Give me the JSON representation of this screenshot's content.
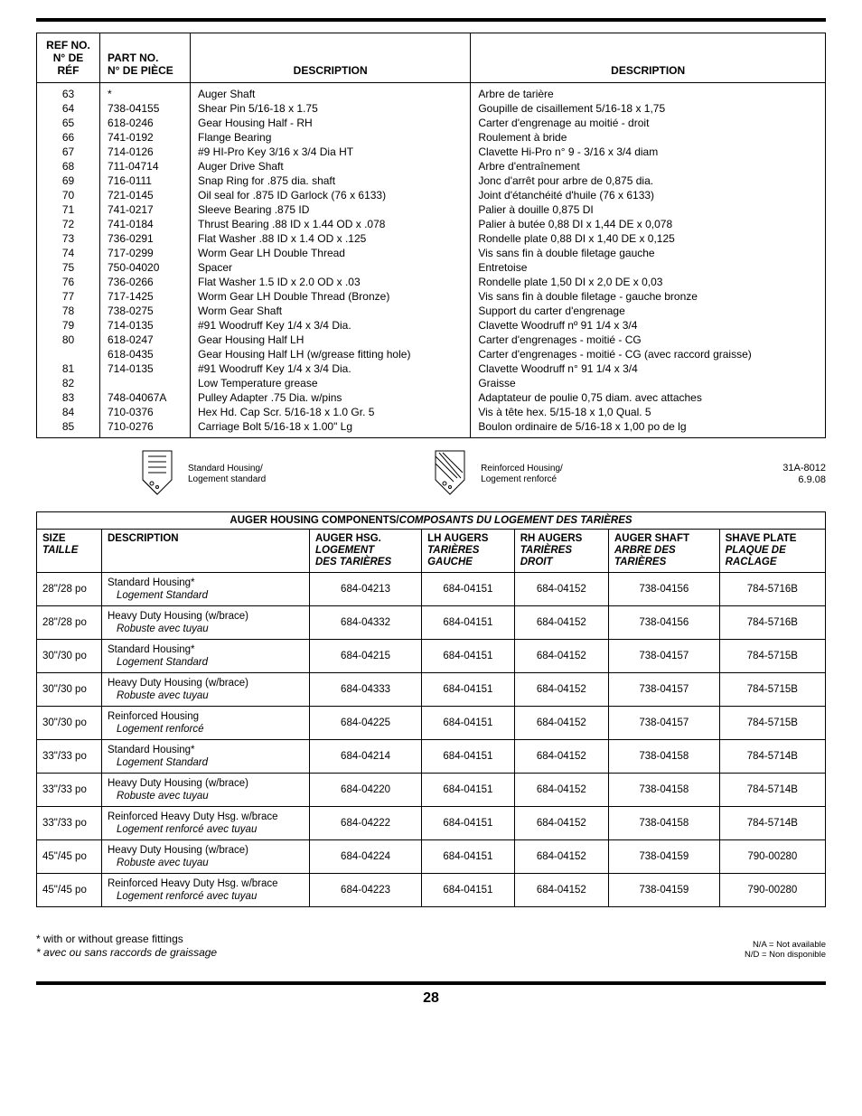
{
  "parts_table": {
    "headers": {
      "ref_en": "REF NO.",
      "ref_fr": "N° DE RÉF",
      "part_en": "PART NO.",
      "part_fr": "N° DE PIÈCE",
      "desc_en": "DESCRIPTION",
      "desc_fr": "DESCRIPTION"
    },
    "rows": [
      {
        "ref": "63",
        "part": "*",
        "desc_en": "Auger Shaft",
        "desc_fr": "Arbre de tarière"
      },
      {
        "ref": "64",
        "part": "738-04155",
        "desc_en": "Shear Pin 5/16-18 x 1.75",
        "desc_fr": "Goupille de cisaillement 5/16-18 x 1,75"
      },
      {
        "ref": "65",
        "part": "618-0246",
        "desc_en": "Gear Housing Half - RH",
        "desc_fr": "Carter d'engrenage au moitié - droit"
      },
      {
        "ref": "66",
        "part": "741-0192",
        "desc_en": "Flange Bearing",
        "desc_fr": "Roulement à bride"
      },
      {
        "ref": "67",
        "part": "714-0126",
        "desc_en": "#9 HI-Pro Key 3/16 x 3/4 Dia HT",
        "desc_fr": "Clavette Hi-Pro n° 9 - 3/16 x 3/4 diam"
      },
      {
        "ref": "68",
        "part": "711-04714",
        "desc_en": "Auger Drive Shaft",
        "desc_fr": "Arbre d'entraînement"
      },
      {
        "ref": "69",
        "part": "716-0111",
        "desc_en": "Snap Ring for .875 dia. shaft",
        "desc_fr": "Jonc d'arrêt pour arbre de 0,875 dia."
      },
      {
        "ref": "70",
        "part": "721-0145",
        "desc_en": "Oil seal for .875 ID Garlock (76 x 6133)",
        "desc_fr": "Joint d'étanchéité d'huile (76 x 6133)"
      },
      {
        "ref": "71",
        "part": "741-0217",
        "desc_en": "Sleeve Bearing .875 ID",
        "desc_fr": "Palier à douille 0,875 DI"
      },
      {
        "ref": "72",
        "part": "741-0184",
        "desc_en": "Thrust Bearing .88 ID x 1.44 OD x .078",
        "desc_fr": "Palier à butée 0,88 DI x 1,44 DE x 0,078"
      },
      {
        "ref": "73",
        "part": "736-0291",
        "desc_en": "Flat Washer .88 ID x 1.4 OD x .125",
        "desc_fr": "Rondelle plate 0,88 DI x 1,40 DE x 0,125"
      },
      {
        "ref": "74",
        "part": "717-0299",
        "desc_en": "Worm Gear LH Double Thread",
        "desc_fr": "Vis sans fin à double filetage gauche"
      },
      {
        "ref": "75",
        "part": "750-04020",
        "desc_en": "Spacer",
        "desc_fr": "Entretoise"
      },
      {
        "ref": "76",
        "part": "736-0266",
        "desc_en": "Flat Washer 1.5 ID x 2.0 OD x .03",
        "desc_fr": "Rondelle plate 1,50 DI x 2,0 DE x 0,03"
      },
      {
        "ref": "77",
        "part": "717-1425",
        "desc_en": "Worm Gear LH Double Thread (Bronze)",
        "desc_fr": "Vis sans fin à double filetage - gauche bronze"
      },
      {
        "ref": "78",
        "part": "738-0275",
        "desc_en": "Worm Gear Shaft",
        "desc_fr": "Support du carter d'engrenage"
      },
      {
        "ref": "79",
        "part": "714-0135",
        "desc_en": "#91 Woodruff Key 1/4 x 3/4 Dia.",
        "desc_fr": "Clavette Woodruff nº 91 1/4 x 3/4"
      },
      {
        "ref": "80",
        "part": "618-0247",
        "desc_en": "Gear Housing Half LH",
        "desc_fr": "Carter d'engrenages - moitié - CG"
      },
      {
        "ref": "",
        "part": "618-0435",
        "desc_en": "Gear Housing Half LH (w/grease fitting hole)",
        "desc_fr": "Carter d'engrenages - moitié - CG (avec raccord graisse)"
      },
      {
        "ref": "81",
        "part": "714-0135",
        "desc_en": "#91 Woodruff Key 1/4 x 3/4 Dia.",
        "desc_fr": "Clavette Woodruff n° 91 1/4 x 3/4"
      },
      {
        "ref": "82",
        "part": "",
        "desc_en": "Low Temperature grease",
        "desc_fr": "Graisse"
      },
      {
        "ref": "83",
        "part": "748-04067A",
        "desc_en": "Pulley Adapter .75 Dia. w/pins",
        "desc_fr": "Adaptateur de poulie 0,75 diam. avec  attaches"
      },
      {
        "ref": "84",
        "part": "710-0376",
        "desc_en": "Hex Hd. Cap Scr. 5/16-18 x 1.0 Gr. 5",
        "desc_fr": "Vis à tête hex. 5/15-18 x 1,0 Qual. 5"
      },
      {
        "ref": "85",
        "part": "710-0276",
        "desc_en": "Carriage Bolt 5/16-18 x 1.00\" Lg",
        "desc_fr": "Boulon ordinaire de 5/16-18 x 1,00 po de lg"
      }
    ]
  },
  "mid": {
    "std_en": "Standard Housing/",
    "std_fr": "Logement standard",
    "rein_en": "Reinforced Housing/",
    "rein_fr": "Logement renforcé",
    "doc_code": "31A-8012",
    "doc_date": "6.9.08"
  },
  "housing_table": {
    "title_en": "AUGER HOUSING COMPONENTS/",
    "title_fr": "COMPOSANTS DU LOGEMENT DES TARIÈRES",
    "headers": {
      "size_en": "SIZE",
      "size_fr": "TAILLE",
      "desc": "DESCRIPTION",
      "auger_hsg_en": "AUGER HSG.",
      "auger_hsg_fr1": "LOGEMENT",
      "auger_hsg_fr2": "DES TARIÈRES",
      "lh_en": "LH AUGERS",
      "lh_fr1": "TARIÈRES",
      "lh_fr2": "GAUCHE",
      "rh_en": "RH AUGERS",
      "rh_fr1": "TARIÈRES",
      "rh_fr2": "DROIT",
      "shaft_en": "AUGER SHAFT",
      "shaft_fr1": "ARBRE DES",
      "shaft_fr2": "TARIÈRES",
      "shave_en": "SHAVE PLATE",
      "shave_fr1": "PLAQUE DE",
      "shave_fr2": "RACLAGE"
    },
    "rows": [
      {
        "size": "28\"/28 po",
        "desc_en": "Standard Housing*",
        "desc_fr": "Logement Standard",
        "hsg": "684-04213",
        "lh": "684-04151",
        "rh": "684-04152",
        "shaft": "738-04156",
        "shave": "784-5716B"
      },
      {
        "size": "28\"/28 po",
        "desc_en": "Heavy Duty Housing (w/brace)",
        "desc_fr": "Robuste avec tuyau",
        "hsg": "684-04332",
        "lh": "684-04151",
        "rh": "684-04152",
        "shaft": "738-04156",
        "shave": "784-5716B"
      },
      {
        "size": "30\"/30 po",
        "desc_en": "Standard Housing*",
        "desc_fr": "Logement Standard",
        "hsg": "684-04215",
        "lh": "684-04151",
        "rh": "684-04152",
        "shaft": "738-04157",
        "shave": "784-5715B"
      },
      {
        "size": "30\"/30 po",
        "desc_en": "Heavy Duty Housing (w/brace)",
        "desc_fr": "Robuste avec tuyau",
        "hsg": "684-04333",
        "lh": "684-04151",
        "rh": "684-04152",
        "shaft": "738-04157",
        "shave": "784-5715B"
      },
      {
        "size": "30\"/30 po",
        "desc_en": "Reinforced Housing",
        "desc_fr": "Logement renforcé",
        "hsg": "684-04225",
        "lh": "684-04151",
        "rh": "684-04152",
        "shaft": "738-04157",
        "shave": "784-5715B"
      },
      {
        "size": "33\"/33 po",
        "desc_en": "Standard Housing*",
        "desc_fr": "Logement Standard",
        "hsg": "684-04214",
        "lh": "684-04151",
        "rh": "684-04152",
        "shaft": "738-04158",
        "shave": "784-5714B"
      },
      {
        "size": "33\"/33 po",
        "desc_en": "Heavy Duty Housing (w/brace)",
        "desc_fr": "Robuste avec tuyau",
        "hsg": "684-04220",
        "lh": "684-04151",
        "rh": "684-04152",
        "shaft": "738-04158",
        "shave": "784-5714B"
      },
      {
        "size": "33\"/33 po",
        "desc_en": "Reinforced Heavy Duty Hsg. w/brace",
        "desc_fr": "Logement  renforcé avec tuyau",
        "hsg": "684-04222",
        "lh": "684-04151",
        "rh": "684-04152",
        "shaft": "738-04158",
        "shave": "784-5714B"
      },
      {
        "size": "45\"/45 po",
        "desc_en": "Heavy Duty Housing (w/brace)",
        "desc_fr": "Robuste avec tuyau",
        "hsg": "684-04224",
        "lh": "684-04151",
        "rh": "684-04152",
        "shaft": "738-04159",
        "shave": "790-00280"
      },
      {
        "size": "45\"/45 po",
        "desc_en": "Reinforced Heavy Duty Hsg. w/brace",
        "desc_fr": "Logement  renforcé avec tuyau",
        "hsg": "684-04223",
        "lh": "684-04151",
        "rh": "684-04152",
        "shaft": "738-04159",
        "shave": "790-00280"
      }
    ]
  },
  "footnotes": {
    "fn_en": "* with or without grease fittings",
    "fn_fr": "* avec ou sans raccords de graissage",
    "na_en": "N/A = Not available",
    "na_fr": "N/D = Non disponible"
  },
  "page_number": "28"
}
